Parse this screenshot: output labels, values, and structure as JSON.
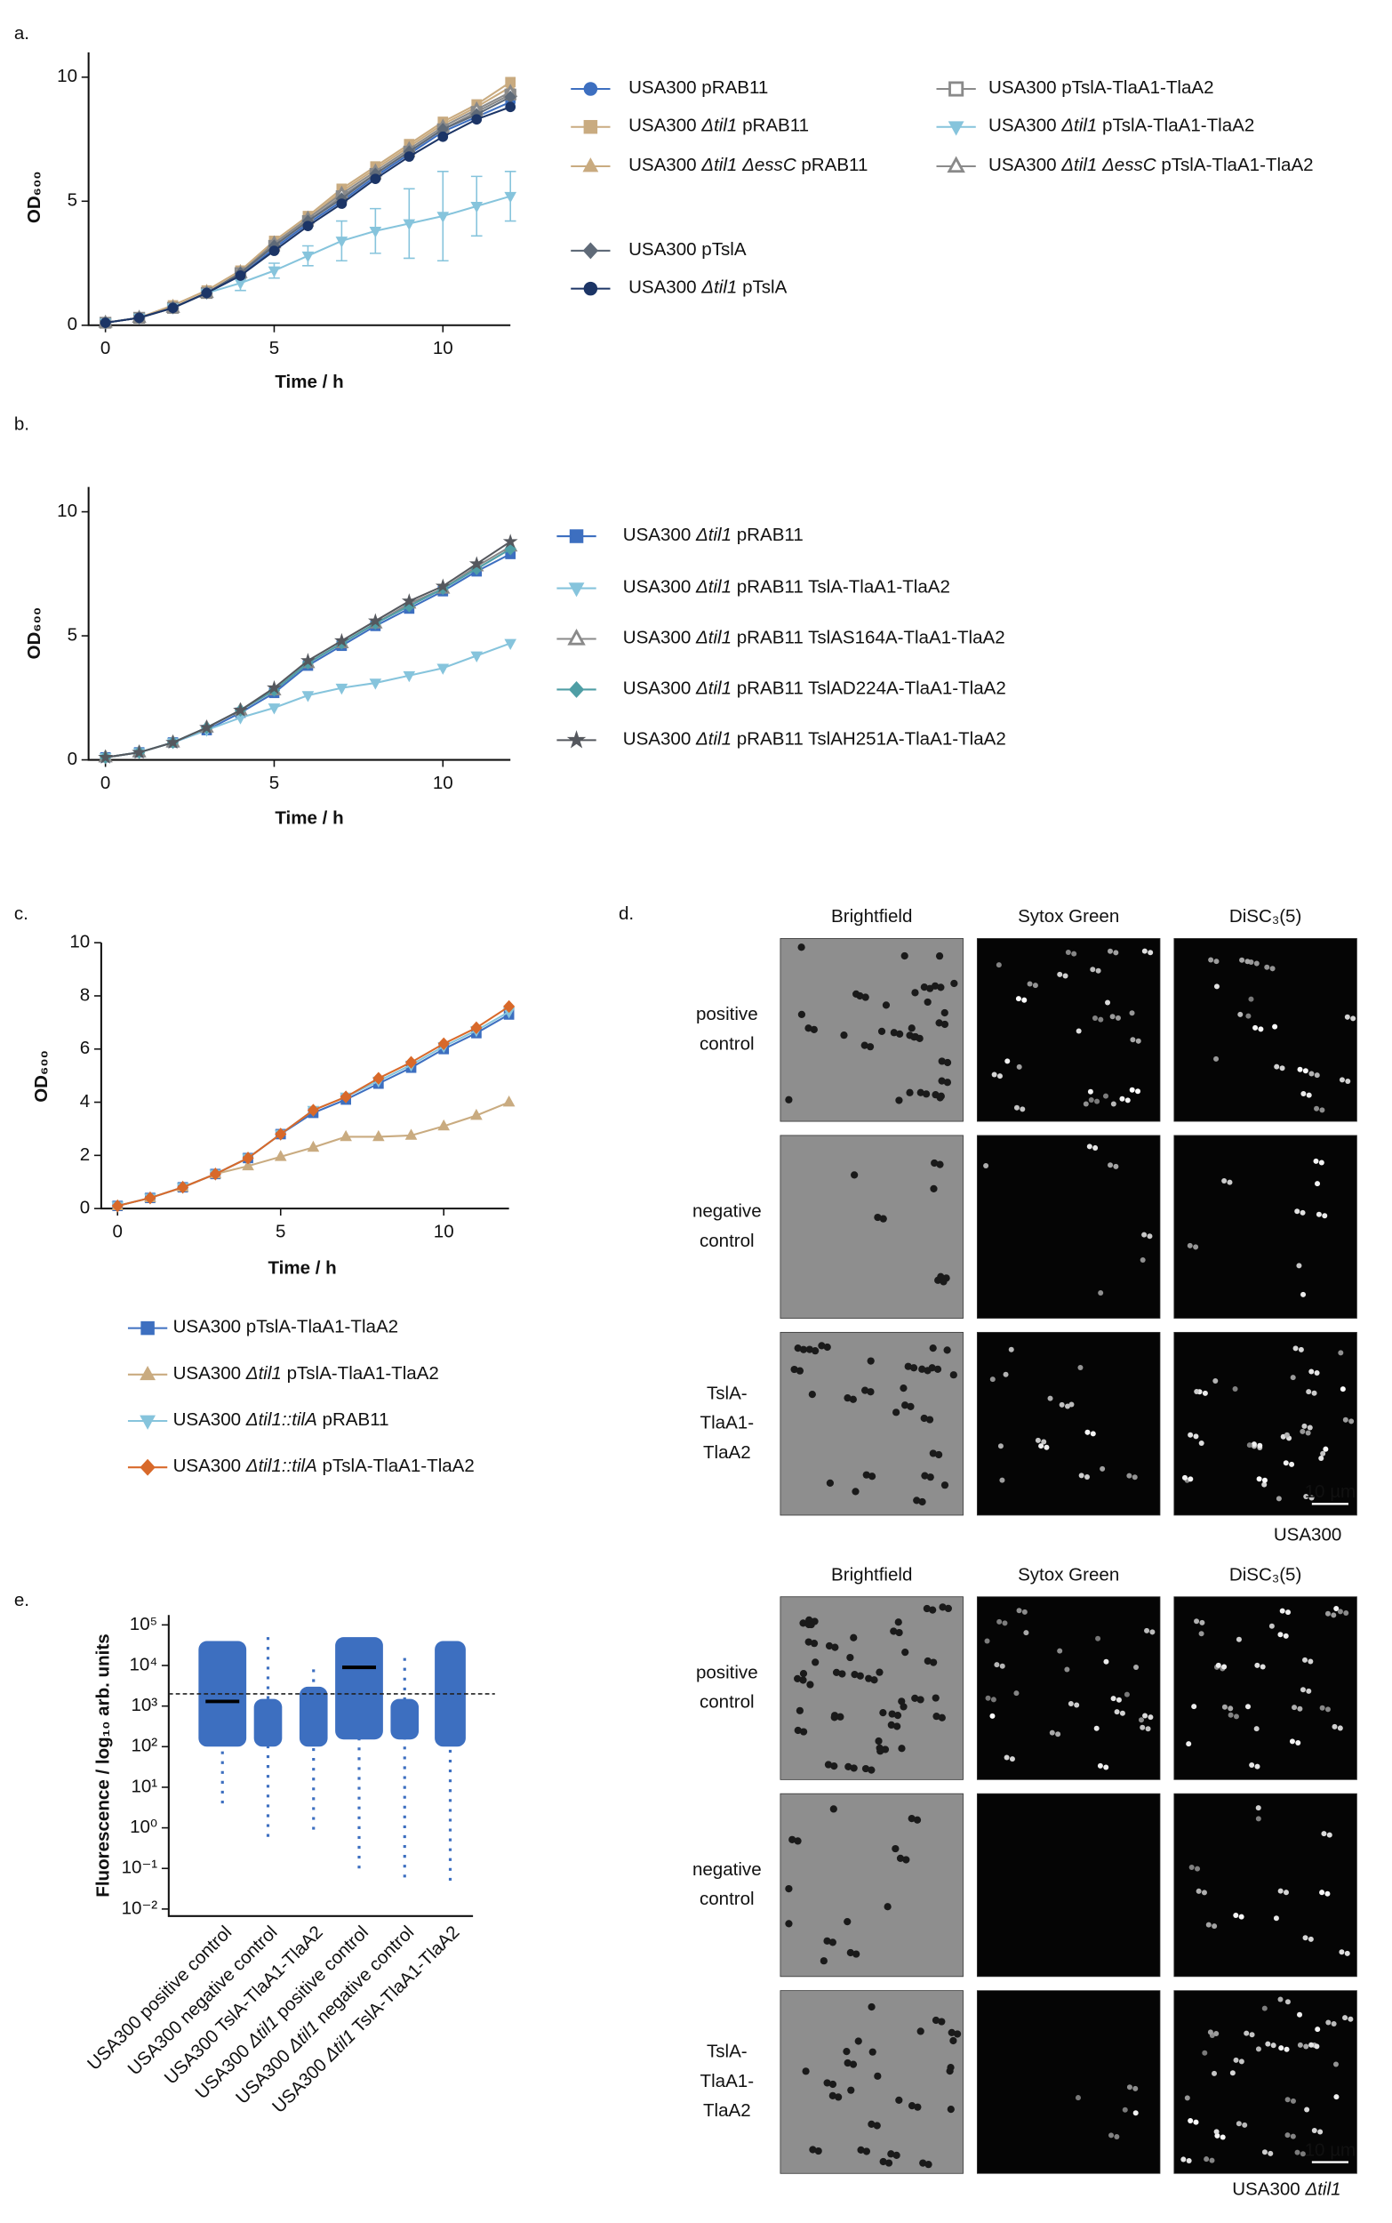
{
  "chart_data": [
    {
      "type": "line",
      "panel": "a.",
      "xlabel": "Time / h",
      "ylabel": "OD₆₀₀",
      "x": [
        0,
        1,
        2,
        3,
        4,
        5,
        6,
        7,
        8,
        9,
        10,
        11,
        12
      ],
      "xlim": [
        -0.5,
        12
      ],
      "xticks": [
        0,
        5,
        10
      ],
      "ylim": [
        0,
        11
      ],
      "yticks": [
        0,
        5,
        10
      ],
      "series": [
        {
          "name": "USA300 pRAB11",
          "color": "#3d6fc0",
          "marker": "circle",
          "values": [
            0.1,
            0.3,
            0.7,
            1.3,
            2.0,
            3.1,
            4.1,
            5.0,
            6.0,
            6.9,
            7.8,
            8.4,
            9.0
          ]
        },
        {
          "name": "USA300 Δtil1 pRAB11",
          "color": "#c9ab80",
          "marker": "square",
          "values": [
            0.1,
            0.3,
            0.8,
            1.4,
            2.2,
            3.4,
            4.4,
            5.5,
            6.4,
            7.3,
            8.2,
            8.9,
            9.8
          ]
        },
        {
          "name": "USA300 Δtil1 ΔessC pRAB11",
          "color": "#c9ab80",
          "marker": "triangle",
          "values": [
            0.1,
            0.3,
            0.8,
            1.4,
            2.2,
            3.3,
            4.3,
            5.4,
            6.3,
            7.2,
            8.1,
            8.8,
            9.6
          ]
        },
        {
          "name": "USA300 pTslA-TlaA1-TlaA2",
          "color": "#8a8a8a",
          "marker": "open-square",
          "values": [
            0.1,
            0.3,
            0.7,
            1.3,
            2.1,
            3.2,
            4.2,
            5.2,
            6.1,
            7.0,
            7.9,
            8.6,
            9.3
          ]
        },
        {
          "name": "USA300 Δtil1 pTslA-TlaA1-TlaA2",
          "color": "#86c4dc",
          "marker": "down-triangle",
          "values": [
            0.1,
            0.3,
            0.7,
            1.3,
            1.7,
            2.2,
            2.8,
            3.4,
            3.8,
            4.1,
            4.4,
            4.8,
            5.2
          ],
          "errors": [
            0,
            0,
            0.1,
            0.1,
            0.3,
            0.3,
            0.4,
            0.8,
            0.9,
            1.4,
            1.8,
            1.2,
            1.0
          ]
        },
        {
          "name": "USA300 Δtil1 ΔessC pTslA-TlaA1-TlaA2",
          "color": "#8a8a8a",
          "marker": "open-triangle",
          "values": [
            0.1,
            0.3,
            0.7,
            1.3,
            2.1,
            3.3,
            4.3,
            5.3,
            6.2,
            7.1,
            8.0,
            8.7,
            9.4
          ]
        },
        {
          "name": "USA300 pTslA",
          "color": "#5f6a78",
          "marker": "diamond",
          "values": [
            0.1,
            0.3,
            0.7,
            1.3,
            2.1,
            3.2,
            4.2,
            5.1,
            6.1,
            7.0,
            7.9,
            8.5,
            9.2
          ]
        },
        {
          "name": "USA300 Δtil1 pTslA",
          "color": "#1c3566",
          "marker": "circle",
          "values": [
            0.1,
            0.3,
            0.7,
            1.3,
            2.0,
            3.0,
            4.0,
            4.9,
            5.9,
            6.8,
            7.6,
            8.3,
            8.8
          ]
        }
      ]
    },
    {
      "type": "line",
      "panel": "b.",
      "xlabel": "Time / h",
      "ylabel": "OD₆₀₀",
      "x": [
        0,
        1,
        2,
        3,
        4,
        5,
        6,
        7,
        8,
        9,
        10,
        11,
        12
      ],
      "xlim": [
        -0.5,
        12
      ],
      "xticks": [
        0,
        5,
        10
      ],
      "ylim": [
        0,
        11
      ],
      "yticks": [
        0,
        5,
        10
      ],
      "series": [
        {
          "name": "USA300 Δtil1 pRAB11",
          "color": "#3d6fc0",
          "marker": "square",
          "values": [
            0.1,
            0.3,
            0.7,
            1.2,
            1.9,
            2.7,
            3.8,
            4.6,
            5.4,
            6.1,
            6.8,
            7.6,
            8.3
          ]
        },
        {
          "name": "USA300 Δtil1 pRAB11 TslA-TlaA1-TlaA2",
          "color": "#86c4dc",
          "marker": "down-triangle",
          "values": [
            0.1,
            0.3,
            0.7,
            1.2,
            1.7,
            2.1,
            2.6,
            2.9,
            3.1,
            3.4,
            3.7,
            4.2,
            4.7
          ]
        },
        {
          "name": "USA300 Δtil1 pRAB11 TslAS164A-TlaA1-TlaA2",
          "color": "#8a8a8a",
          "marker": "open-triangle",
          "values": [
            0.1,
            0.3,
            0.7,
            1.3,
            2.0,
            2.8,
            3.9,
            4.7,
            5.5,
            6.3,
            6.9,
            7.8,
            8.6
          ]
        },
        {
          "name": "USA300 Δtil1 pRAB11 TslAD224A-TlaA1-TlaA2",
          "color": "#4f9ea5",
          "marker": "diamond",
          "values": [
            0.1,
            0.3,
            0.7,
            1.3,
            2.0,
            2.8,
            3.9,
            4.7,
            5.5,
            6.2,
            6.9,
            7.7,
            8.5
          ]
        },
        {
          "name": "USA300 Δtil1 pRAB11 TslAH251A-TlaA1-TlaA2",
          "color": "#55585e",
          "marker": "star",
          "values": [
            0.1,
            0.3,
            0.7,
            1.3,
            2.0,
            2.9,
            4.0,
            4.8,
            5.6,
            6.4,
            7.0,
            7.9,
            8.8
          ]
        }
      ]
    },
    {
      "type": "line",
      "panel": "c.",
      "xlabel": "Time / h",
      "ylabel": "OD₆₀₀",
      "x": [
        0,
        1,
        2,
        3,
        4,
        5,
        6,
        7,
        8,
        9,
        10,
        11,
        12
      ],
      "xlim": [
        -0.5,
        12
      ],
      "xticks": [
        0,
        5,
        10
      ],
      "ylim": [
        0,
        10
      ],
      "yticks": [
        0,
        2,
        4,
        6,
        8,
        10
      ],
      "series": [
        {
          "name": "USA300 pTslA-TlaA1-TlaA2",
          "color": "#3d6fc0",
          "marker": "square",
          "values": [
            0.1,
            0.4,
            0.8,
            1.3,
            1.9,
            2.8,
            3.6,
            4.1,
            4.7,
            5.3,
            6.0,
            6.6,
            7.3
          ]
        },
        {
          "name": "USA300 Δtil1 pTslA-TlaA1-TlaA2",
          "color": "#c9ab80",
          "marker": "triangle",
          "values": [
            0.1,
            0.4,
            0.8,
            1.3,
            1.6,
            1.95,
            2.3,
            2.7,
            2.7,
            2.75,
            3.1,
            3.5,
            4.0
          ]
        },
        {
          "name": "USA300 Δtil1::tilA pRAB11",
          "color": "#86c4dc",
          "marker": "down-triangle",
          "values": [
            0.1,
            0.4,
            0.8,
            1.3,
            1.9,
            2.8,
            3.7,
            4.2,
            4.8,
            5.4,
            6.1,
            6.7,
            7.4
          ]
        },
        {
          "name": "USA300 Δtil1::tilA pTslA-TlaA1-TlaA2",
          "color": "#d8692a",
          "marker": "diamond",
          "values": [
            0.1,
            0.4,
            0.8,
            1.3,
            1.9,
            2.8,
            3.7,
            4.2,
            4.9,
            5.5,
            6.2,
            6.8,
            7.6
          ]
        }
      ]
    },
    {
      "type": "strip",
      "panel": "e.",
      "ylabel": "Fluorescence / log₁₀ arb. units",
      "log_scale": true,
      "color": "#3d6fc0",
      "categories": [
        "USA300 positive control",
        "USA300 negative control",
        "USA300 TslA-TlaA1-TlaA2",
        "USA300 Δtil1 positive control",
        "USA300 Δtil1 negative control",
        "USA300 Δtil1 TslA-TlaA1-TlaA2"
      ],
      "ranges": [
        [
          4,
          40000
        ],
        [
          0.6,
          50000
        ],
        [
          0.9,
          10000
        ],
        [
          0.1,
          50000
        ],
        [
          0.06,
          20000
        ],
        [
          0.05,
          40000
        ]
      ],
      "bulk": [
        [
          100,
          40000
        ],
        [
          100,
          1500
        ],
        [
          100,
          3000
        ],
        [
          150,
          50000
        ],
        [
          150,
          1500
        ],
        [
          100,
          40000
        ]
      ],
      "medians": [
        1300,
        null,
        null,
        9000,
        null,
        null
      ],
      "threshold": 2000,
      "ylim": [
        0.01,
        100000
      ],
      "yticks": [
        {
          "value": 100000,
          "label": "10⁵"
        },
        {
          "value": 10000,
          "label": "10⁴"
        },
        {
          "value": 1000,
          "label": "10³"
        },
        {
          "value": 100,
          "label": "10²"
        },
        {
          "value": 10,
          "label": "10¹"
        },
        {
          "value": 1,
          "label": "10⁰"
        },
        {
          "value": 0.1,
          "label": "10⁻¹"
        },
        {
          "value": 0.01,
          "label": "10⁻²"
        }
      ]
    }
  ],
  "micrographs": {
    "panel": "d.",
    "columns": [
      "Brightfield",
      "Sytox Green",
      "DiSC₃(5)"
    ],
    "rows": [
      [
        "positive",
        "control"
      ],
      [
        "negative",
        "control"
      ],
      [
        "TslA-",
        "TlaA1-",
        "TlaA2"
      ]
    ],
    "groups": [
      "USA300",
      "USA300 Δtil1"
    ],
    "scale_bar": "10 µm"
  }
}
